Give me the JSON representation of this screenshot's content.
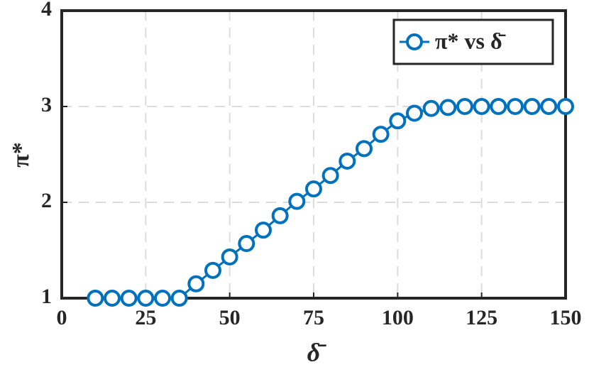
{
  "chart_data": {
    "type": "line",
    "x_label": "δ̄",
    "y_label": "π*",
    "x": [
      10,
      15,
      20,
      25,
      30,
      35,
      40,
      45,
      50,
      55,
      60,
      65,
      70,
      75,
      80,
      85,
      90,
      95,
      100,
      105,
      110,
      115,
      120,
      125,
      130,
      135,
      140,
      145,
      150
    ],
    "series": [
      {
        "name": "π* vs δ̄",
        "color": "#0072bd",
        "values": [
          1,
          1,
          1,
          1,
          1,
          1,
          1.15,
          1.29,
          1.43,
          1.57,
          1.71,
          1.86,
          2.01,
          2.14,
          2.28,
          2.43,
          2.56,
          2.71,
          2.85,
          2.93,
          2.98,
          2.99,
          3,
          3,
          3,
          3,
          3,
          3,
          3
        ]
      }
    ],
    "xlim": [
      0,
      150
    ],
    "xticks": [
      0,
      25,
      50,
      75,
      100,
      125,
      150
    ],
    "ylim": [
      1,
      4
    ],
    "yticks": [
      1,
      2,
      3,
      4
    ],
    "grid": true,
    "legend": "northeast"
  }
}
